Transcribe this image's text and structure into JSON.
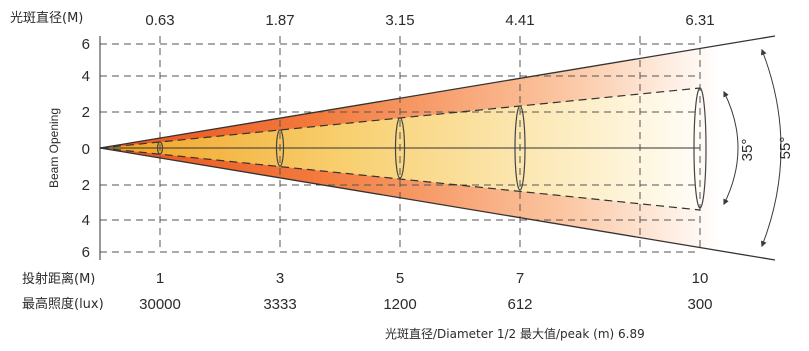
{
  "header": {
    "diameter_label": "光斑直径(M)",
    "diameters": [
      "0.63",
      "1.87",
      "3.15",
      "4.41",
      "6.31"
    ]
  },
  "y_axis": {
    "title": "Beam Opening",
    "ticks": [
      "6",
      "4",
      "2",
      "0",
      "2",
      "4",
      "6"
    ]
  },
  "angles": {
    "inner": "35°",
    "outer": "55°"
  },
  "rows": {
    "distance_label": "投射距离(M)",
    "distances": [
      "1",
      "3",
      "5",
      "7",
      "10"
    ],
    "illuminance_label": "最高照度(lux)",
    "illuminances": [
      "30000",
      "3333",
      "1200",
      "612",
      "300"
    ]
  },
  "footer": {
    "note": "光斑直径/Diameter 1/2 最大值/peak (m) 6.89"
  },
  "colors": {
    "outer_beam_start": "#f0702a",
    "outer_beam_end": "#ffffff",
    "inner_beam_start": "#f3b020",
    "inner_beam_end": "#fff7e0",
    "line": "#3a3a3a"
  }
}
